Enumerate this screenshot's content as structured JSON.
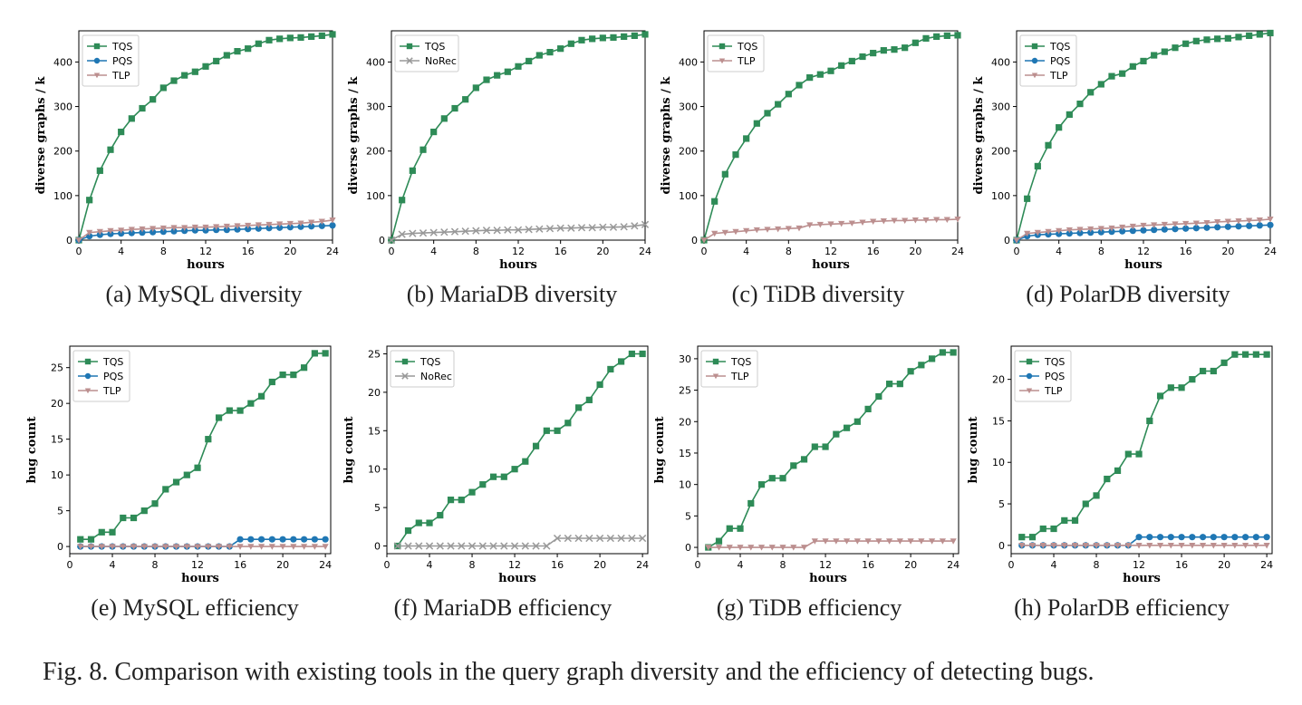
{
  "caption": "Fig. 8.  Comparison with existing tools in the query graph diversity and the efficiency of detecting bugs.",
  "colors": {
    "TQS": "#2e8b57",
    "PQS": "#1f77b4",
    "TLP": "#bc8f8f",
    "NoRec": "#999999"
  },
  "chart_data": [
    {
      "type": "line",
      "subtitle": "(a) MySQL diversity",
      "xlabel": "hours",
      "ylabel": "diverse graphs / k",
      "xlim": [
        0,
        24
      ],
      "ylim": [
        0,
        470
      ],
      "xticks": [
        "0",
        "4",
        "8",
        "12",
        "16",
        "20",
        "24"
      ],
      "yticks": [
        "0",
        "100",
        "200",
        "300",
        "400"
      ],
      "legend": "top-left",
      "x": [
        0,
        1,
        2,
        3,
        4,
        5,
        6,
        7,
        8,
        9,
        10,
        11,
        12,
        13,
        14,
        15,
        16,
        17,
        18,
        19,
        20,
        21,
        22,
        23,
        24
      ],
      "series": [
        {
          "name": "TQS",
          "marker": "square",
          "values": [
            0,
            90,
            156,
            203,
            243,
            273,
            296,
            316,
            342,
            358,
            370,
            378,
            390,
            402,
            415,
            424,
            430,
            441,
            449,
            452,
            454,
            455,
            457,
            459,
            462
          ]
        },
        {
          "name": "PQS",
          "marker": "circle",
          "values": [
            0,
            9,
            12,
            14,
            15,
            16,
            17,
            18,
            19,
            20,
            21,
            22,
            22,
            23,
            23,
            24,
            25,
            26,
            27,
            28,
            29,
            30,
            31,
            32,
            33
          ]
        },
        {
          "name": "TLP",
          "marker": "triangle",
          "values": [
            0,
            17,
            19,
            21,
            22,
            24,
            25,
            26,
            27,
            28,
            28,
            29,
            29,
            30,
            31,
            32,
            33,
            34,
            35,
            36,
            37,
            38,
            40,
            42,
            45
          ]
        }
      ]
    },
    {
      "type": "line",
      "subtitle": "(b) MariaDB diversity",
      "xlabel": "hours",
      "ylabel": "diverse graphs / k",
      "xlim": [
        0,
        24
      ],
      "ylim": [
        0,
        470
      ],
      "xticks": [
        "0",
        "4",
        "8",
        "12",
        "16",
        "20",
        "24"
      ],
      "yticks": [
        "0",
        "100",
        "200",
        "300",
        "400"
      ],
      "legend": "top-left",
      "x": [
        0,
        1,
        2,
        3,
        4,
        5,
        6,
        7,
        8,
        9,
        10,
        11,
        12,
        13,
        14,
        15,
        16,
        17,
        18,
        19,
        20,
        21,
        22,
        23,
        24
      ],
      "series": [
        {
          "name": "TQS",
          "marker": "square",
          "values": [
            0,
            90,
            156,
            203,
            243,
            273,
            296,
            316,
            342,
            360,
            370,
            378,
            390,
            402,
            415,
            422,
            430,
            441,
            449,
            452,
            454,
            455,
            457,
            459,
            462
          ]
        },
        {
          "name": "NoRec",
          "marker": "x",
          "values": [
            0,
            13,
            15,
            16,
            17,
            18,
            19,
            20,
            21,
            22,
            22,
            23,
            23,
            24,
            25,
            26,
            27,
            27,
            28,
            28,
            29,
            29,
            30,
            32,
            35
          ]
        }
      ]
    },
    {
      "type": "line",
      "subtitle": "(c) TiDB diversity",
      "xlabel": "hours",
      "ylabel": "diverse graphs / k",
      "xlim": [
        0,
        24
      ],
      "ylim": [
        0,
        470
      ],
      "xticks": [
        "0",
        "4",
        "8",
        "12",
        "16",
        "20",
        "24"
      ],
      "yticks": [
        "0",
        "100",
        "200",
        "300",
        "400"
      ],
      "legend": "top-left",
      "x": [
        0,
        1,
        2,
        3,
        4,
        5,
        6,
        7,
        8,
        9,
        10,
        11,
        12,
        13,
        14,
        15,
        16,
        17,
        18,
        19,
        20,
        21,
        22,
        23,
        24
      ],
      "series": [
        {
          "name": "TQS",
          "marker": "square",
          "values": [
            0,
            87,
            148,
            192,
            228,
            262,
            285,
            305,
            328,
            348,
            365,
            372,
            380,
            392,
            402,
            412,
            420,
            426,
            428,
            432,
            443,
            453,
            457,
            459,
            460
          ]
        },
        {
          "name": "TLP",
          "marker": "triangle",
          "values": [
            0,
            15,
            17,
            19,
            21,
            23,
            24,
            25,
            26,
            27,
            34,
            35,
            36,
            37,
            38,
            40,
            42,
            43,
            44,
            44,
            45,
            45,
            46,
            46,
            47
          ]
        }
      ]
    },
    {
      "type": "line",
      "subtitle": "(d) PolarDB diversity",
      "xlabel": "hours",
      "ylabel": "diverse graphs / k",
      "xlim": [
        0,
        24
      ],
      "ylim": [
        0,
        470
      ],
      "xticks": [
        "0",
        "4",
        "8",
        "12",
        "16",
        "20",
        "24"
      ],
      "yticks": [
        "0",
        "100",
        "200",
        "300",
        "400"
      ],
      "legend": "top-left",
      "x": [
        0,
        1,
        2,
        3,
        4,
        5,
        6,
        7,
        8,
        9,
        10,
        11,
        12,
        13,
        14,
        15,
        16,
        17,
        18,
        19,
        20,
        21,
        22,
        23,
        24
      ],
      "series": [
        {
          "name": "TQS",
          "marker": "square",
          "values": [
            0,
            93,
            166,
            213,
            253,
            282,
            306,
            332,
            350,
            368,
            374,
            390,
            402,
            415,
            423,
            432,
            441,
            447,
            450,
            452,
            453,
            456,
            459,
            462,
            465
          ]
        },
        {
          "name": "PQS",
          "marker": "circle",
          "values": [
            0,
            9,
            12,
            13,
            14,
            15,
            16,
            17,
            18,
            19,
            20,
            21,
            22,
            23,
            24,
            25,
            26,
            27,
            28,
            29,
            30,
            31,
            32,
            33,
            34
          ]
        },
        {
          "name": "TLP",
          "marker": "triangle",
          "values": [
            0,
            15,
            17,
            19,
            21,
            23,
            24,
            25,
            26,
            27,
            29,
            31,
            33,
            34,
            35,
            36,
            37,
            38,
            39,
            41,
            42,
            43,
            44,
            45,
            47
          ]
        }
      ]
    },
    {
      "type": "line",
      "subtitle": "(e) MySQL efficiency",
      "xlabel": "hours",
      "ylabel": "bug count",
      "xlim": [
        0,
        24.5
      ],
      "ylim": [
        -1,
        28
      ],
      "xticks": [
        "0",
        "4",
        "8",
        "12",
        "16",
        "20",
        "24"
      ],
      "yticks": [
        "0",
        "5",
        "10",
        "15",
        "20",
        "25"
      ],
      "legend": "top-left",
      "x": [
        1,
        2,
        3,
        4,
        5,
        6,
        7,
        8,
        9,
        10,
        11,
        12,
        13,
        14,
        15,
        16,
        17,
        18,
        19,
        20,
        21,
        22,
        23,
        24
      ],
      "series": [
        {
          "name": "TQS",
          "marker": "square",
          "values": [
            1,
            1,
            2,
            2,
            4,
            4,
            5,
            6,
            8,
            9,
            10,
            11,
            15,
            18,
            19,
            19,
            20,
            21,
            23,
            24,
            24,
            25,
            27,
            27
          ]
        },
        {
          "name": "PQS",
          "marker": "circle",
          "values": [
            0,
            0,
            0,
            0,
            0,
            0,
            0,
            0,
            0,
            0,
            0,
            0,
            0,
            0,
            0,
            1,
            1,
            1,
            1,
            1,
            1,
            1,
            1,
            1
          ]
        },
        {
          "name": "TLP",
          "marker": "triangle",
          "values": [
            0,
            0,
            0,
            0,
            0,
            0,
            0,
            0,
            0,
            0,
            0,
            0,
            0,
            0,
            0,
            0,
            0,
            0,
            0,
            0,
            0,
            0,
            0,
            0
          ]
        }
      ]
    },
    {
      "type": "line",
      "subtitle": "(f) MariaDB efficiency",
      "xlabel": "hours",
      "ylabel": "bug count",
      "xlim": [
        0,
        24.5
      ],
      "ylim": [
        -1,
        26
      ],
      "xticks": [
        "0",
        "4",
        "8",
        "12",
        "16",
        "20",
        "24"
      ],
      "yticks": [
        "0",
        "5",
        "10",
        "15",
        "20",
        "25"
      ],
      "legend": "top-left",
      "x": [
        1,
        2,
        3,
        4,
        5,
        6,
        7,
        8,
        9,
        10,
        11,
        12,
        13,
        14,
        15,
        16,
        17,
        18,
        19,
        20,
        21,
        22,
        23,
        24
      ],
      "series": [
        {
          "name": "TQS",
          "marker": "square",
          "values": [
            0,
            2,
            3,
            3,
            4,
            6,
            6,
            7,
            8,
            9,
            9,
            10,
            11,
            13,
            15,
            15,
            16,
            18,
            19,
            21,
            23,
            24,
            25,
            25
          ]
        },
        {
          "name": "NoRec",
          "marker": "x",
          "values": [
            0,
            0,
            0,
            0,
            0,
            0,
            0,
            0,
            0,
            0,
            0,
            0,
            0,
            0,
            0,
            1,
            1,
            1,
            1,
            1,
            1,
            1,
            1,
            1
          ]
        }
      ]
    },
    {
      "type": "line",
      "subtitle": "(g) TiDB efficiency",
      "xlabel": "hours",
      "ylabel": "bug count",
      "xlim": [
        0,
        24.5
      ],
      "ylim": [
        -1,
        32
      ],
      "xticks": [
        "0",
        "4",
        "8",
        "12",
        "16",
        "20",
        "24"
      ],
      "yticks": [
        "0",
        "5",
        "10",
        "15",
        "20",
        "25",
        "30"
      ],
      "legend": "top-left",
      "x": [
        1,
        2,
        3,
        4,
        5,
        6,
        7,
        8,
        9,
        10,
        11,
        12,
        13,
        14,
        15,
        16,
        17,
        18,
        19,
        20,
        21,
        22,
        23,
        24
      ],
      "series": [
        {
          "name": "TQS",
          "marker": "square",
          "values": [
            0,
            1,
            3,
            3,
            7,
            10,
            11,
            11,
            13,
            14,
            16,
            16,
            18,
            19,
            20,
            22,
            24,
            26,
            26,
            28,
            29,
            30,
            31,
            31
          ]
        },
        {
          "name": "TLP",
          "marker": "triangle",
          "values": [
            0,
            0,
            0,
            0,
            0,
            0,
            0,
            0,
            0,
            0,
            1,
            1,
            1,
            1,
            1,
            1,
            1,
            1,
            1,
            1,
            1,
            1,
            1,
            1
          ]
        }
      ]
    },
    {
      "type": "line",
      "subtitle": "(h) PolarDB efficiency",
      "xlabel": "hours",
      "ylabel": "bug count",
      "xlim": [
        0,
        24.5
      ],
      "ylim": [
        -1,
        24
      ],
      "xticks": [
        "0",
        "4",
        "8",
        "12",
        "16",
        "20",
        "24"
      ],
      "yticks": [
        "0",
        "5",
        "10",
        "15",
        "20"
      ],
      "legend": "top-left",
      "x": [
        1,
        2,
        3,
        4,
        5,
        6,
        7,
        8,
        9,
        10,
        11,
        12,
        13,
        14,
        15,
        16,
        17,
        18,
        19,
        20,
        21,
        22,
        23,
        24
      ],
      "series": [
        {
          "name": "TQS",
          "marker": "square",
          "values": [
            1,
            1,
            2,
            2,
            3,
            3,
            5,
            6,
            8,
            9,
            11,
            11,
            15,
            18,
            19,
            19,
            20,
            21,
            21,
            22,
            23,
            23,
            23,
            23
          ]
        },
        {
          "name": "PQS",
          "marker": "circle",
          "values": [
            0,
            0,
            0,
            0,
            0,
            0,
            0,
            0,
            0,
            0,
            0,
            1,
            1,
            1,
            1,
            1,
            1,
            1,
            1,
            1,
            1,
            1,
            1,
            1
          ]
        },
        {
          "name": "TLP",
          "marker": "triangle",
          "values": [
            0,
            0,
            0,
            0,
            0,
            0,
            0,
            0,
            0,
            0,
            0,
            0,
            0,
            0,
            0,
            0,
            0,
            0,
            0,
            0,
            0,
            0,
            0,
            0
          ]
        }
      ]
    }
  ]
}
